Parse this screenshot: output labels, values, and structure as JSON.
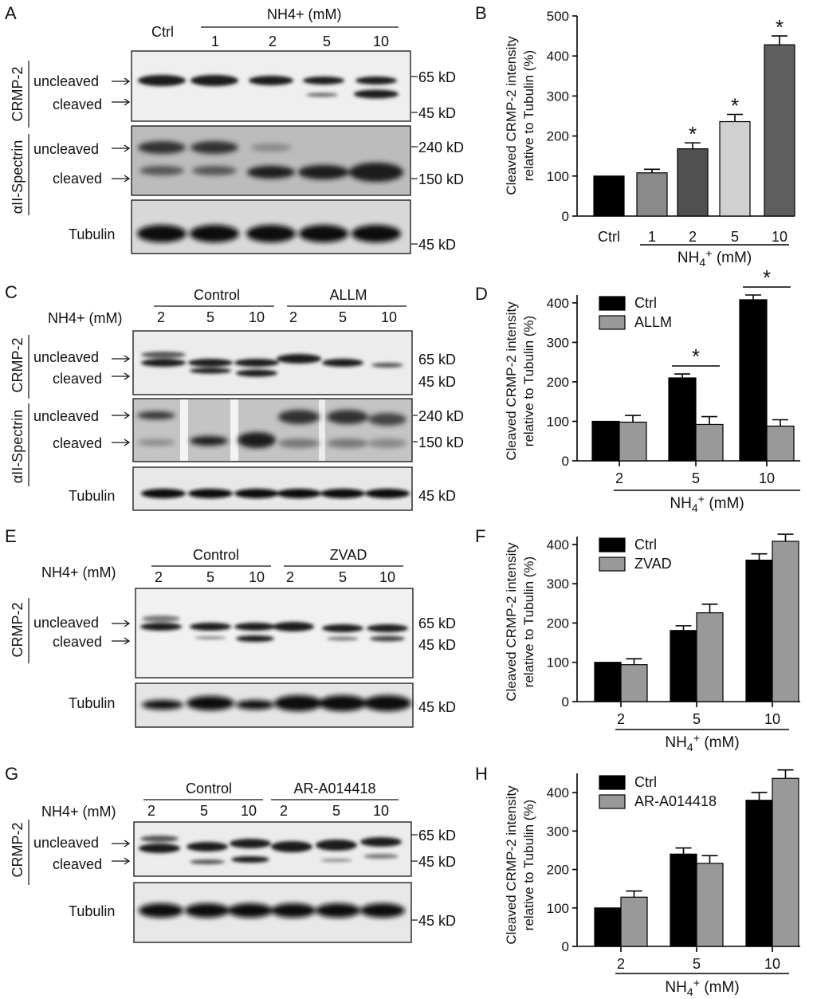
{
  "panels": {
    "A": {
      "letter": "A",
      "ctrl": "Ctrl",
      "treat_label": "NH4+ (mM)",
      "lanes": [
        "1",
        "2",
        "5",
        "10"
      ],
      "crmp_label": "CRMP-2",
      "spectrin_label": "αII-Spectrin",
      "uncleaved": "uncleaved",
      "cleaved": "cleaved",
      "tubulin": "Tubulin",
      "kd": [
        "65 kD",
        "45 kD",
        "240 kD",
        "150 kD",
        "45 kD"
      ]
    },
    "C": {
      "letter": "C",
      "treat_label": "NH4+ (mM)",
      "group1": "Control",
      "group2": "ALLM",
      "lanes": [
        "2",
        "5",
        "10",
        "2",
        "5",
        "10"
      ],
      "crmp_label": "CRMP-2",
      "spectrin_label": "αII-Spectrin",
      "uncleaved": "uncleaved",
      "cleaved": "cleaved",
      "tubulin": "Tubulin",
      "kd": [
        "65 kD",
        "45 kD",
        "240 kD",
        "150 kD",
        "45 kD"
      ]
    },
    "E": {
      "letter": "E",
      "treat_label": "NH4+ (mM)",
      "group1": "Control",
      "group2": "ZVAD",
      "lanes": [
        "2",
        "5",
        "10",
        "2",
        "5",
        "10"
      ],
      "crmp_label": "CRMP-2",
      "uncleaved": "uncleaved",
      "cleaved": "cleaved",
      "tubulin": "Tubulin",
      "kd": [
        "65 kD",
        "45 kD",
        "45 kD"
      ]
    },
    "G": {
      "letter": "G",
      "treat_label": "NH4+ (mM)",
      "group1": "Control",
      "group2": "AR-A014418",
      "lanes": [
        "2",
        "5",
        "10",
        "2",
        "5",
        "10"
      ],
      "crmp_label": "CRMP-2",
      "uncleaved": "uncleaved",
      "cleaved": "cleaved",
      "tubulin": "Tubulin",
      "kd": [
        "65 kD",
        "45 kD",
        "45 kD"
      ]
    }
  },
  "chart_data": [
    {
      "panel": "B",
      "type": "bar",
      "ylabel": "Cleaved CRMP-2 intensity relative to Tubulin (%)",
      "xlabel": "NH4+ (mM)",
      "categories": [
        "Ctrl",
        "1",
        "2",
        "5",
        "10"
      ],
      "values": [
        100,
        108,
        168,
        236,
        428
      ],
      "errors": [
        0,
        9,
        15,
        18,
        22
      ],
      "colors": [
        "#000000",
        "#8a8a8a",
        "#505050",
        "#d0d0d0",
        "#5e5e5e"
      ],
      "significance": [
        "",
        "",
        "*",
        "*",
        "*"
      ],
      "ylim": [
        0,
        500
      ],
      "yticks": [
        0,
        100,
        200,
        300,
        400,
        500
      ]
    },
    {
      "panel": "D",
      "type": "bar",
      "ylabel": "Cleaved CRMP-2 intensity relative to Tubulin (%)",
      "xlabel": "NH4+ (mM)",
      "categories": [
        "2",
        "5",
        "10"
      ],
      "series": [
        {
          "name": "Ctrl",
          "values": [
            100,
            210,
            408
          ],
          "errors": [
            0,
            10,
            12
          ],
          "color": "#000000"
        },
        {
          "name": "ALLM",
          "values": [
            98,
            92,
            88
          ],
          "errors": [
            17,
            20,
            16
          ],
          "color": "#999999"
        }
      ],
      "significance": [
        "",
        "*",
        "*"
      ],
      "ylim": [
        0,
        420
      ],
      "yticks": [
        0,
        100,
        200,
        300,
        400
      ],
      "legend": "top-left"
    },
    {
      "panel": "F",
      "type": "bar",
      "ylabel": "Cleaved CRMP-2 intensity relative to Tubulin (%)",
      "xlabel": "NH4+ (mM)",
      "categories": [
        "2",
        "5",
        "10"
      ],
      "series": [
        {
          "name": "Ctrl",
          "values": [
            100,
            181,
            360
          ],
          "errors": [
            0,
            12,
            16
          ],
          "color": "#000000"
        },
        {
          "name": "ZVAD",
          "values": [
            94,
            226,
            408
          ],
          "errors": [
            15,
            22,
            18
          ],
          "color": "#999999"
        }
      ],
      "ylim": [
        0,
        420
      ],
      "yticks": [
        0,
        100,
        200,
        300,
        400
      ],
      "legend": "top-left"
    },
    {
      "panel": "H",
      "type": "bar",
      "ylabel": "Cleaved CRMP-2 intensity relative to Tubulin (%)",
      "xlabel": "NH4+ (mM)",
      "categories": [
        "2",
        "5",
        "10"
      ],
      "series": [
        {
          "name": "Ctrl",
          "values": [
            100,
            240,
            380
          ],
          "errors": [
            0,
            16,
            20
          ],
          "color": "#000000"
        },
        {
          "name": "AR-A014418",
          "values": [
            128,
            216,
            437
          ],
          "errors": [
            16,
            20,
            22
          ],
          "color": "#999999"
        }
      ],
      "ylim": [
        0,
        450
      ],
      "yticks": [
        0,
        100,
        200,
        300,
        400
      ],
      "legend": "top-left"
    }
  ]
}
